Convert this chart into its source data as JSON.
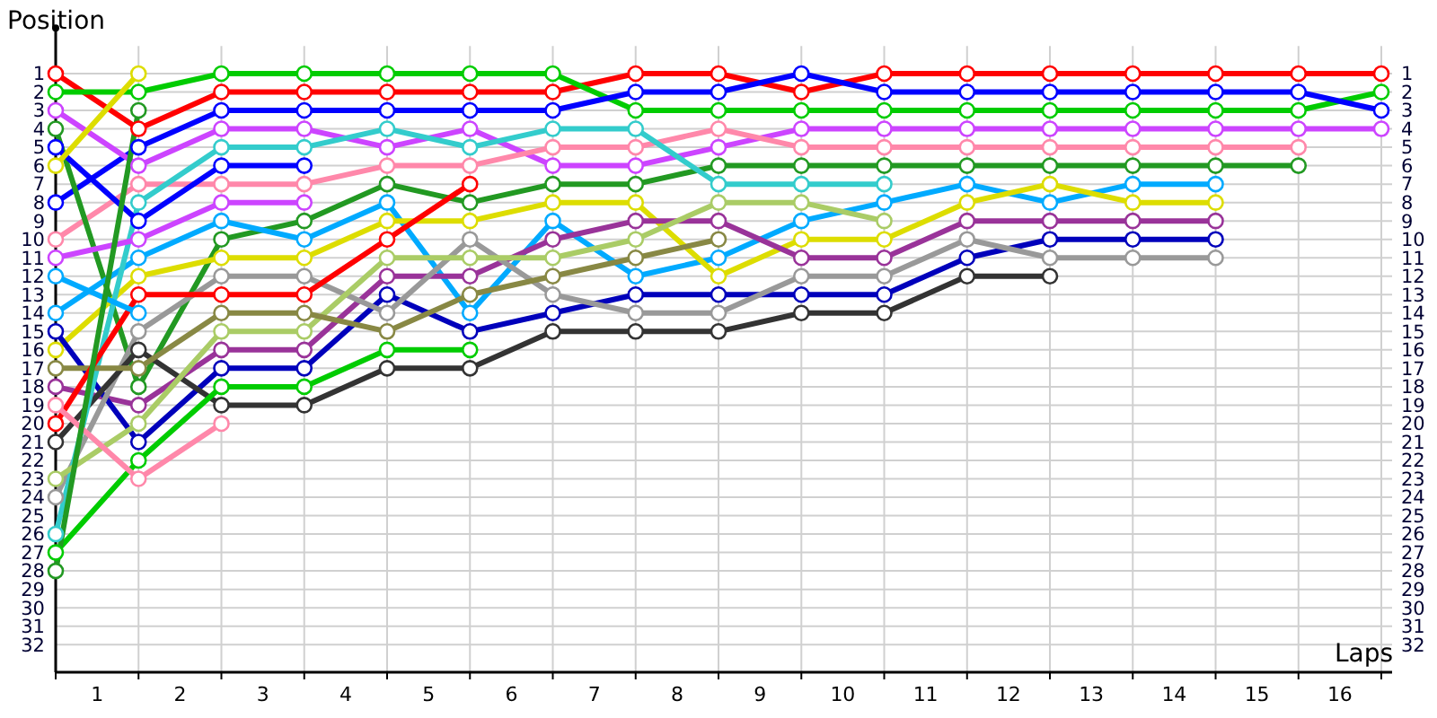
{
  "chart_data": {
    "type": "line",
    "xlabel": "Laps",
    "ylabel": "Position",
    "x": [
      0,
      1,
      2,
      3,
      4,
      5,
      6,
      7,
      8,
      9,
      10,
      11,
      12,
      13,
      14,
      15,
      16
    ],
    "xlim": [
      0,
      16.13
    ],
    "xticks": [
      {
        "value": 0,
        "label": null
      },
      {
        "value": 0.5,
        "label": "1"
      },
      {
        "value": 1,
        "label": null
      },
      {
        "value": 1.5,
        "label": "2"
      },
      {
        "value": 2,
        "label": null
      },
      {
        "value": 2.5,
        "label": "3"
      },
      {
        "value": 3,
        "label": null
      },
      {
        "value": 3.5,
        "label": "4"
      },
      {
        "value": 4,
        "label": null
      },
      {
        "value": 4.5,
        "label": "5"
      },
      {
        "value": 5,
        "label": null
      },
      {
        "value": 5.5,
        "label": "6"
      },
      {
        "value": 6,
        "label": null
      },
      {
        "value": 6.5,
        "label": "7"
      },
      {
        "value": 7,
        "label": null
      },
      {
        "value": 7.5,
        "label": "8"
      },
      {
        "value": 8,
        "label": null
      },
      {
        "value": 8.5,
        "label": "9"
      },
      {
        "value": 9,
        "label": null
      },
      {
        "value": 9.5,
        "label": "10"
      },
      {
        "value": 10,
        "label": null
      },
      {
        "value": 10.5,
        "label": "11"
      },
      {
        "value": 11,
        "label": null
      },
      {
        "value": 11.5,
        "label": "12"
      },
      {
        "value": 12,
        "label": null
      },
      {
        "value": 12.5,
        "label": "13"
      },
      {
        "value": 13,
        "label": null
      },
      {
        "value": 13.5,
        "label": "14"
      },
      {
        "value": 14,
        "label": null
      },
      {
        "value": 14.5,
        "label": "15"
      },
      {
        "value": 15,
        "label": null
      },
      {
        "value": 15.5,
        "label": "16"
      },
      {
        "value": 16,
        "label": null
      }
    ],
    "ylim": [
      33.5,
      -0.5
    ],
    "yticks": [
      1,
      2,
      3,
      4,
      5,
      6,
      7,
      8,
      9,
      10,
      11,
      12,
      13,
      14,
      15,
      16,
      17,
      18,
      19,
      20,
      21,
      22,
      23,
      24,
      25,
      26,
      27,
      28,
      29,
      30,
      31,
      32
    ],
    "y2lim": [
      33.5,
      -0.5
    ],
    "y2ticks": [
      1,
      2,
      3,
      4,
      5,
      6,
      7,
      8,
      9,
      10,
      11,
      12,
      13,
      14,
      15,
      16,
      17,
      18,
      19,
      20,
      21,
      22,
      23,
      24,
      25,
      26,
      27,
      28,
      29,
      30,
      31,
      32
    ],
    "grid": true,
    "marker": "circle",
    "line_style": "solid",
    "series": [
      {
        "color": "#ff0000",
        "values": [
          1,
          4,
          2,
          2,
          2,
          2,
          2,
          1,
          1,
          2,
          1,
          1,
          1,
          1,
          1,
          1,
          1
        ]
      },
      {
        "color": "#00cc00",
        "values": [
          2,
          2,
          1,
          1,
          1,
          1,
          1,
          3,
          3,
          3,
          3,
          3,
          3,
          3,
          3,
          3,
          2
        ]
      },
      {
        "color": "#0000ff",
        "values": [
          8,
          5,
          3,
          3,
          3,
          3,
          3,
          2,
          2,
          1,
          2,
          2,
          2,
          2,
          2,
          2,
          3
        ]
      },
      {
        "color": "#cc44ff",
        "values": [
          3,
          6,
          4,
          4,
          5,
          4,
          6,
          6,
          5,
          4,
          4,
          4,
          4,
          4,
          4,
          4,
          4
        ]
      },
      {
        "color": "#ff88aa",
        "values": [
          10,
          7,
          7,
          7,
          6,
          6,
          5,
          5,
          4,
          5,
          5,
          5,
          5,
          5,
          5,
          5,
          null
        ]
      },
      {
        "color": "#229922",
        "values": [
          4,
          18,
          10,
          9,
          7,
          8,
          7,
          7,
          6,
          6,
          6,
          6,
          6,
          6,
          6,
          6,
          null
        ]
      },
      {
        "color": "#00aaff",
        "values": [
          14,
          11,
          9,
          10,
          8,
          14,
          9,
          12,
          11,
          9,
          8,
          7,
          8,
          7,
          7,
          null,
          null
        ]
      },
      {
        "color": "#dddd00",
        "values": [
          16,
          12,
          11,
          11,
          9,
          9,
          8,
          8,
          12,
          10,
          10,
          8,
          7,
          8,
          8,
          null,
          null
        ]
      },
      {
        "color": "#993399",
        "values": [
          18,
          19,
          16,
          16,
          12,
          12,
          10,
          9,
          9,
          11,
          11,
          9,
          9,
          9,
          9,
          null,
          null
        ]
      },
      {
        "color": "#0000bb",
        "values": [
          15,
          21,
          17,
          17,
          13,
          15,
          14,
          13,
          13,
          13,
          13,
          11,
          10,
          10,
          10,
          null,
          null
        ]
      },
      {
        "color": "#999999",
        "values": [
          24,
          15,
          12,
          12,
          14,
          10,
          13,
          14,
          14,
          12,
          12,
          10,
          11,
          11,
          11,
          null,
          null
        ]
      },
      {
        "color": "#333333",
        "values": [
          21,
          16,
          19,
          19,
          17,
          17,
          15,
          15,
          15,
          14,
          14,
          12,
          12,
          null,
          null,
          null,
          null
        ]
      },
      {
        "color": "#33cccc",
        "values": [
          26,
          8,
          5,
          5,
          4,
          5,
          4,
          4,
          7,
          7,
          7,
          null,
          null,
          null,
          null,
          null,
          null
        ]
      },
      {
        "color": "#aacc66",
        "values": [
          23,
          20,
          15,
          15,
          11,
          11,
          11,
          10,
          8,
          8,
          9,
          null,
          null,
          null,
          null,
          null,
          null
        ]
      },
      {
        "color": "#888844",
        "values": [
          17,
          17,
          14,
          14,
          15,
          13,
          12,
          11,
          10,
          null,
          null,
          null,
          null,
          null,
          null,
          null,
          null
        ]
      },
      {
        "color": "#ff0000",
        "values": [
          20,
          13,
          13,
          13,
          10,
          7,
          null,
          null,
          null,
          null,
          null,
          null,
          null,
          null,
          null,
          null,
          null
        ]
      },
      {
        "color": "#00cc00",
        "values": [
          27,
          22,
          18,
          18,
          16,
          16,
          null,
          null,
          null,
          null,
          null,
          null,
          null,
          null,
          null,
          null,
          null
        ]
      },
      {
        "color": "#0000ff",
        "values": [
          5,
          9,
          6,
          6,
          null,
          null,
          null,
          null,
          null,
          null,
          null,
          null,
          null,
          null,
          null,
          null,
          null
        ]
      },
      {
        "color": "#cc44ff",
        "values": [
          11,
          10,
          8,
          8,
          null,
          null,
          null,
          null,
          null,
          null,
          null,
          null,
          null,
          null,
          null,
          null,
          null
        ]
      },
      {
        "color": "#ff88aa",
        "values": [
          19,
          23,
          20,
          null,
          null,
          null,
          null,
          null,
          null,
          null,
          null,
          null,
          null,
          null,
          null,
          null,
          null
        ]
      },
      {
        "color": "#00aaff",
        "values": [
          12,
          14,
          null,
          null,
          null,
          null,
          null,
          null,
          null,
          null,
          null,
          null,
          null,
          null,
          null,
          null,
          null
        ]
      },
      {
        "color": "#dddd00",
        "values": [
          6,
          1,
          null,
          null,
          null,
          null,
          null,
          null,
          null,
          null,
          null,
          null,
          null,
          null,
          null,
          null,
          null
        ]
      },
      {
        "color": "#229922",
        "values": [
          28,
          3,
          null,
          null,
          null,
          null,
          null,
          null,
          null,
          null,
          null,
          null,
          null,
          null,
          null,
          null,
          null
        ]
      }
    ]
  }
}
